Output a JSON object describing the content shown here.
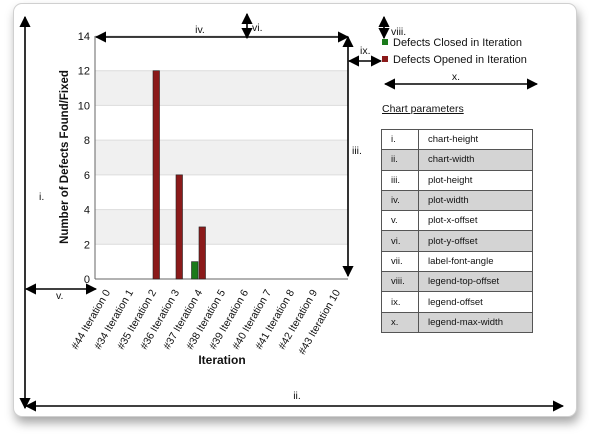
{
  "chart_data": {
    "type": "bar",
    "xlabel": "Iteration",
    "ylabel": "Number of Defects Found/Fixed",
    "ylim": [
      0,
      14
    ],
    "yticks": [
      "0",
      "2",
      "4",
      "6",
      "8",
      "10",
      "12",
      "14"
    ],
    "categories": [
      "#44 Iteration 0",
      "#34 Iteration 1",
      "#35 Iteration 2",
      "#36 Iteration 3",
      "#37 Iteration 4",
      "#38 Iteration 5",
      "#39 Iteration 6",
      "#40 Iteration 7",
      "#41 Iteration 8",
      "#42 Iteration 9",
      "#43 Iteration 10"
    ],
    "series": [
      {
        "name": "Defects Closed in Iteration",
        "color": "#1a7a1a",
        "values": [
          0,
          0,
          0,
          0,
          1,
          0,
          0,
          0,
          0,
          0,
          0
        ]
      },
      {
        "name": "Defects Opened in Iteration",
        "color": "#8b1a1a",
        "values": [
          0,
          0,
          12,
          6,
          3,
          0,
          0,
          0,
          0,
          0,
          0
        ]
      }
    ],
    "grid": true,
    "legend_position": "top-right",
    "label_angle_deg": -60
  },
  "annotations": [
    "i.",
    "ii.",
    "iii.",
    "iv.",
    "v.",
    "vi.",
    "vii.",
    "viii.",
    "ix.",
    "x."
  ],
  "parameters": {
    "title": "Chart parameters",
    "rows": [
      {
        "num": "i.",
        "name": "chart-height"
      },
      {
        "num": "ii.",
        "name": "chart-width"
      },
      {
        "num": "iii.",
        "name": "plot-height"
      },
      {
        "num": "iv.",
        "name": "plot-width"
      },
      {
        "num": "v.",
        "name": "plot-x-offset"
      },
      {
        "num": "vi.",
        "name": "plot-y-offset"
      },
      {
        "num": "vii.",
        "name": "label-font-angle"
      },
      {
        "num": "viii.",
        "name": "legend-top-offset"
      },
      {
        "num": "ix.",
        "name": "legend-offset"
      },
      {
        "num": "x.",
        "name": "legend-max-width"
      }
    ]
  }
}
